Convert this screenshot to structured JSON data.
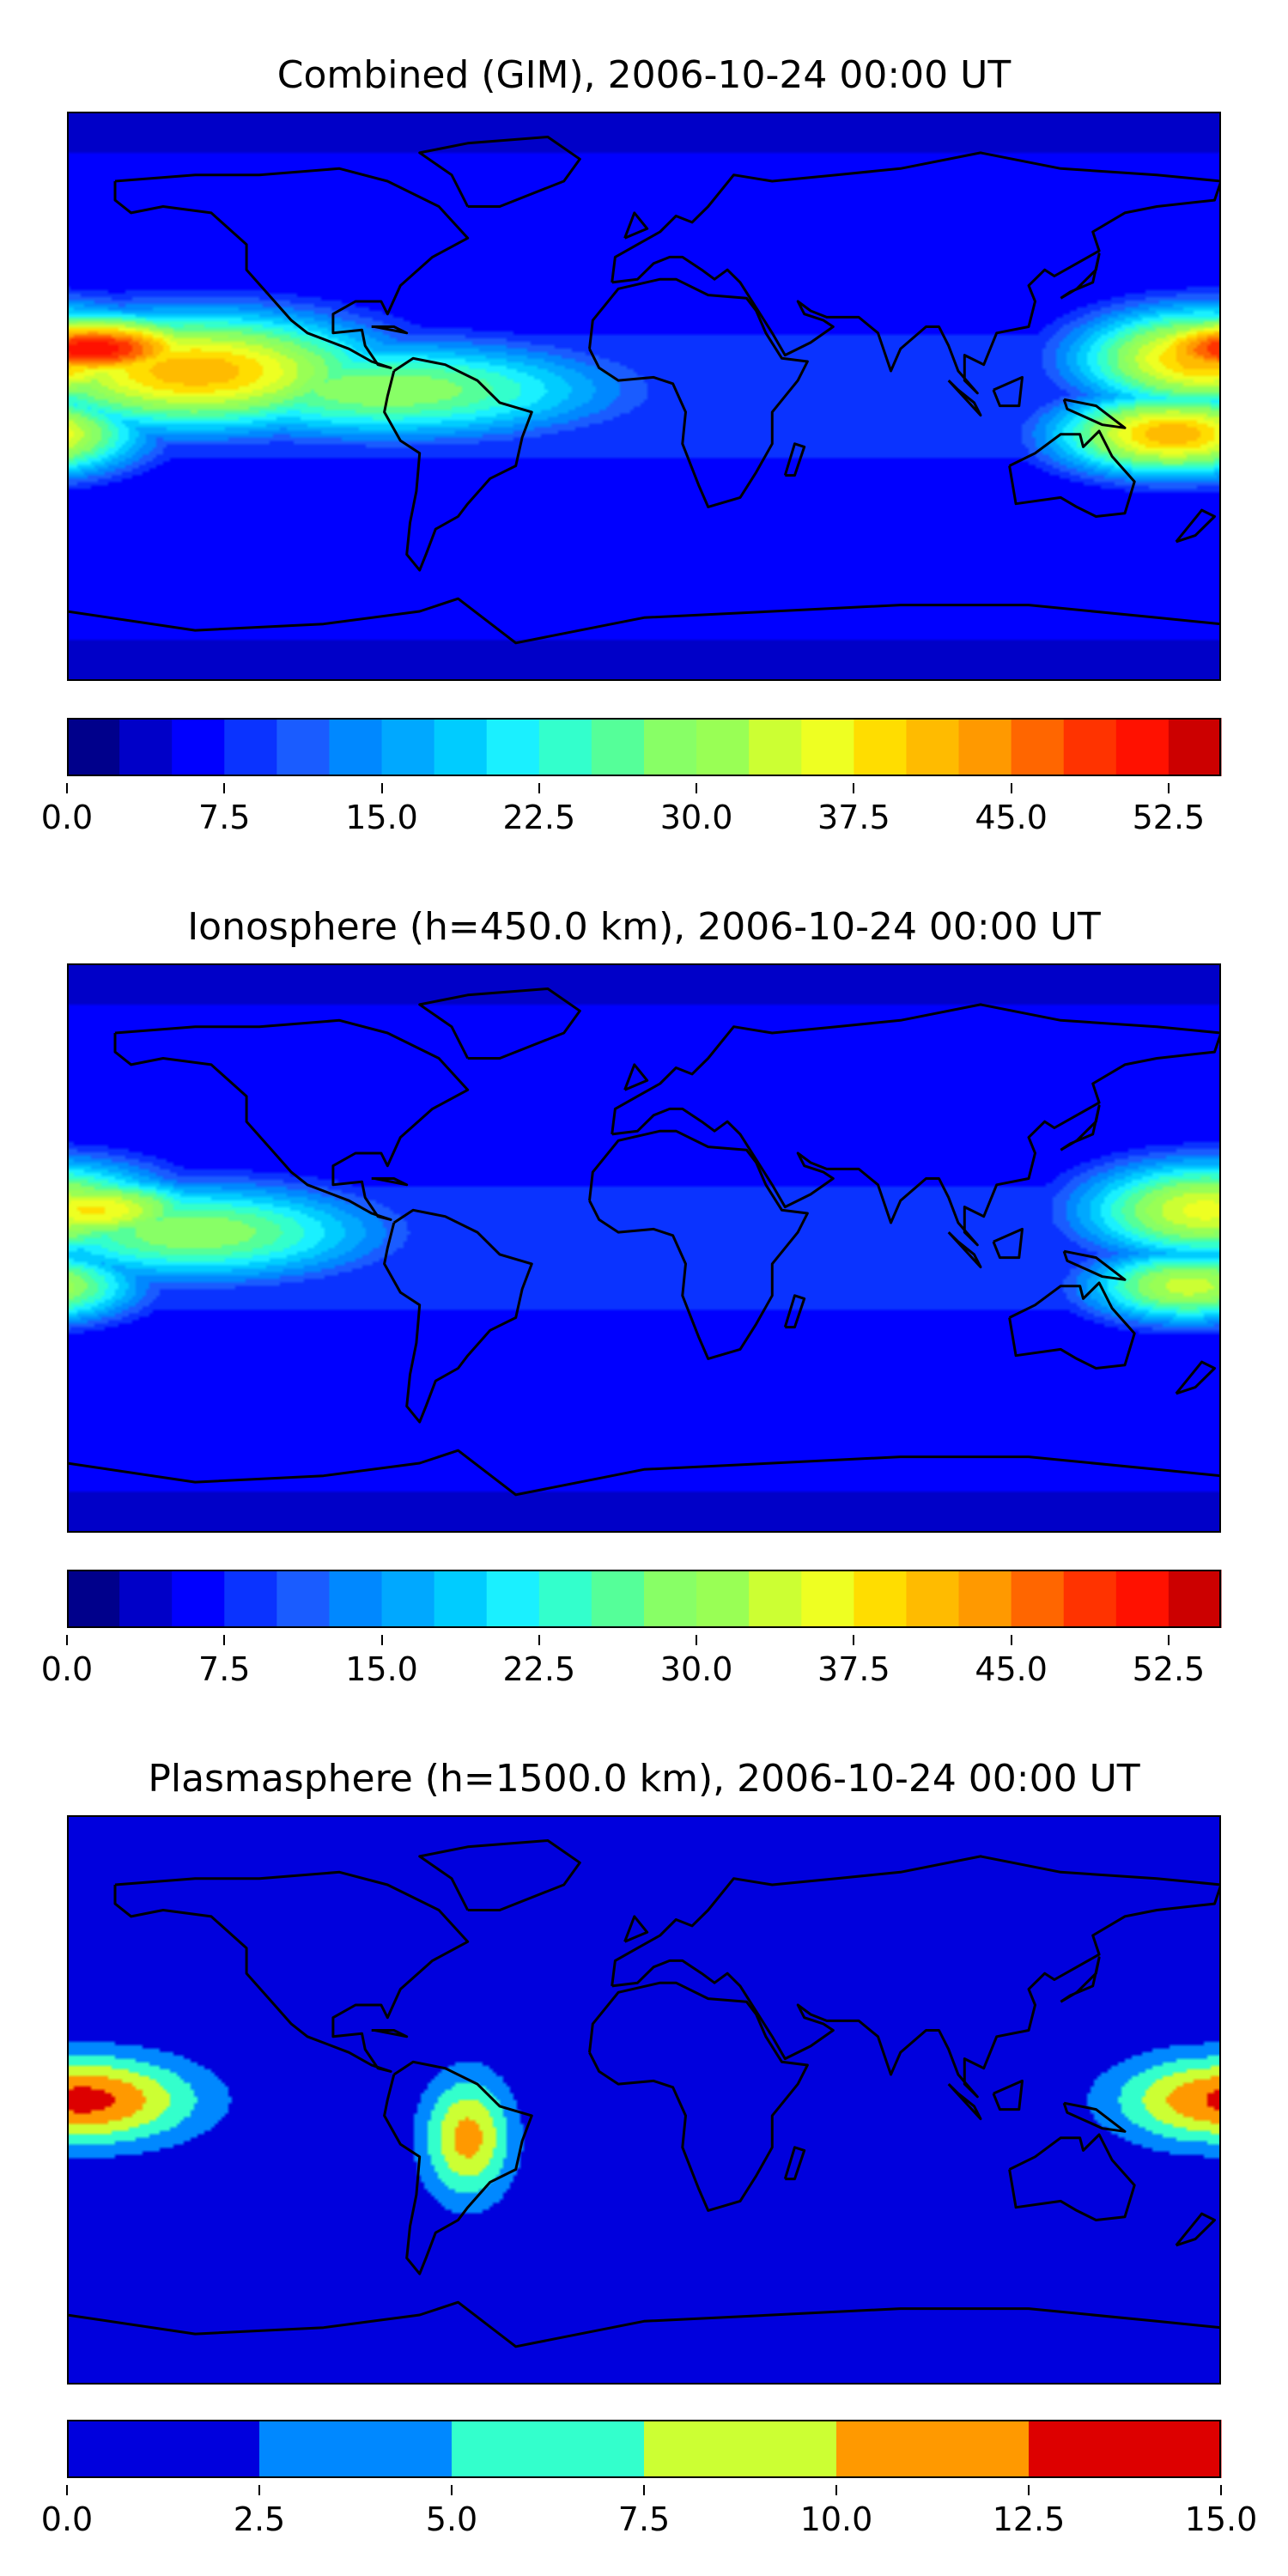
{
  "chart_data": [
    {
      "type": "heatmap",
      "title": "Combined (GIM), 2006-10-24 00:00 UT",
      "colorbar": {
        "ticks": [
          "0.0",
          "7.5",
          "15.0",
          "22.5",
          "30.0",
          "37.5",
          "45.0",
          "52.5"
        ],
        "tick_values": [
          0,
          7.5,
          15,
          22.5,
          30,
          37.5,
          45,
          52.5
        ],
        "range": [
          0,
          55
        ],
        "step": 2.5,
        "colors": [
          "#00008b",
          "#0000c8",
          "#0000ff",
          "#0a33ff",
          "#1a5cff",
          "#0088ff",
          "#00a8ff",
          "#00ccff",
          "#1af0ff",
          "#33ffcc",
          "#55ff99",
          "#88ff66",
          "#99ff55",
          "#ccff33",
          "#eeff22",
          "#ffdd00",
          "#ffbb00",
          "#ff9900",
          "#ff6600",
          "#ff3300",
          "#ff1100",
          "#cc0000",
          "#8b0000"
        ]
      },
      "features": [
        {
          "lon": -172,
          "lat": 15,
          "value": 52,
          "spread_lon": 30,
          "spread_lat": 8
        },
        {
          "lon": -140,
          "lat": 8,
          "value": 42,
          "spread_lon": 45,
          "spread_lat": 14
        },
        {
          "lon": -80,
          "lat": 2,
          "value": 30,
          "spread_lon": 55,
          "spread_lat": 12
        },
        {
          "lon": 175,
          "lat": 12,
          "value": 42,
          "spread_lon": 30,
          "spread_lat": 12
        },
        {
          "lon": 165,
          "lat": -12,
          "value": 42,
          "spread_lon": 28,
          "spread_lat": 10
        }
      ]
    },
    {
      "type": "heatmap",
      "title": "Ionosphere  (h=450.0 km), 2006-10-24 00:00 UT",
      "colorbar": {
        "ticks": [
          "0.0",
          "7.5",
          "15.0",
          "22.5",
          "30.0",
          "37.5",
          "45.0",
          "52.5"
        ],
        "tick_values": [
          0,
          7.5,
          15,
          22.5,
          30,
          37.5,
          45,
          52.5
        ],
        "range": [
          0,
          55
        ],
        "step": 2.5,
        "colors": [
          "#00008b",
          "#0000c8",
          "#0000ff",
          "#0a33ff",
          "#1a5cff",
          "#0088ff",
          "#00a8ff",
          "#00ccff",
          "#1af0ff",
          "#33ffcc",
          "#55ff99",
          "#88ff66",
          "#99ff55",
          "#ccff33",
          "#eeff22",
          "#ffdd00",
          "#ffbb00",
          "#ff9900",
          "#ff6600",
          "#ff3300",
          "#ff1100",
          "#cc0000",
          "#8b0000"
        ]
      },
      "features": [
        {
          "lon": -172,
          "lat": 12,
          "value": 38,
          "spread_lon": 28,
          "spread_lat": 8
        },
        {
          "lon": -140,
          "lat": 5,
          "value": 30,
          "spread_lon": 45,
          "spread_lat": 12
        },
        {
          "lon": 175,
          "lat": 12,
          "value": 36,
          "spread_lon": 30,
          "spread_lat": 12
        },
        {
          "lon": 170,
          "lat": -12,
          "value": 34,
          "spread_lon": 25,
          "spread_lat": 9
        }
      ]
    },
    {
      "type": "heatmap",
      "title": "Plasmasphere (h=1500.0 km), 2006-10-24 00:00 UT",
      "colorbar": {
        "ticks": [
          "0.0",
          "2.5",
          "5.0",
          "7.5",
          "10.0",
          "12.5",
          "15.0"
        ],
        "tick_values": [
          0,
          2.5,
          5,
          7.5,
          10,
          12.5,
          15
        ],
        "range": [
          0,
          15
        ],
        "step": 2.5,
        "colors": [
          "#0000dd",
          "#0088ff",
          "#33ffcc",
          "#ccff33",
          "#ff9900",
          "#dd0000"
        ]
      },
      "features": [
        {
          "lon": -175,
          "lat": 0,
          "value": 13.5,
          "spread_lon": 25,
          "spread_lat": 10
        },
        {
          "lon": -55,
          "lat": -12,
          "value": 11,
          "spread_lon": 10,
          "spread_lat": 14
        },
        {
          "lon": 178,
          "lat": 0,
          "value": 12.5,
          "spread_lon": 22,
          "spread_lat": 10
        }
      ]
    }
  ]
}
